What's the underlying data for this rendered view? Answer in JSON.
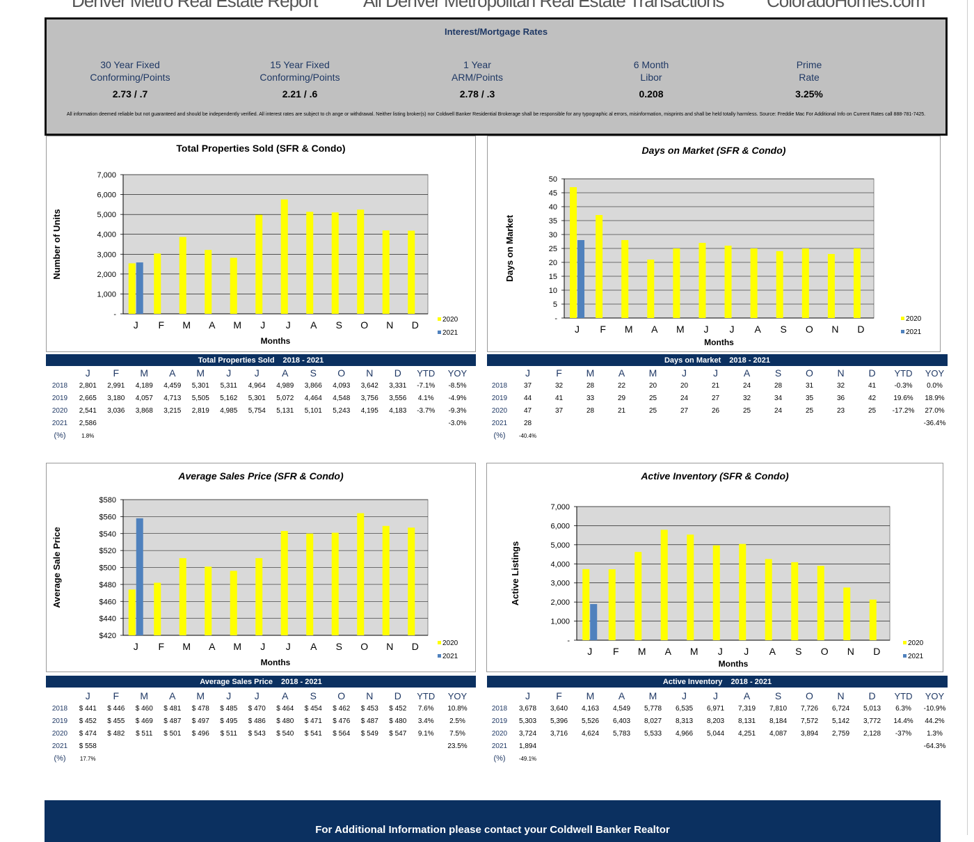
{
  "header": {
    "left": "Denver Metro Real Estate Report",
    "center": "All Denver Metropolitan Real Estate Transactions",
    "right": "ColoradoHomes.com"
  },
  "rates": {
    "title": "Interest/Mortgage Rates",
    "items": [
      {
        "line1": "30 Year Fixed",
        "line2": "Conforming/Points",
        "value": "2.73 /  .7"
      },
      {
        "line1": "15 Year Fixed",
        "line2": "Conforming/Points",
        "value": "2.21  /  .6"
      },
      {
        "line1": "1 Year",
        "line2": "ARM/Points",
        "value": "2.78 / .3"
      },
      {
        "line1": "6 Month",
        "line2": "Libor",
        "value": "0.208"
      },
      {
        "line1": "Prime",
        "line2": "Rate",
        "value": "3.25%"
      }
    ],
    "disclaimer": "All information deemed reliable but not guaranteed and should be independently verified. All interest rates are subject to ch ange or withdrawal. Neither listing broker(s) nor Coldwell Banker Residential Brokerage shall be responsible for any typographic al errors,  misinformation, misprints and shall be held totally harmless. Source: Freddie Mac For Additional Info on Current Rates call 888-781-7425."
  },
  "colors": {
    "series_2020": "#ffff00",
    "series_2021": "#4f81bd",
    "navy": "#0b3060",
    "plot_bg": "#d9d9d9",
    "rates_bg": "#c0c0c0"
  },
  "months": [
    "J",
    "F",
    "M",
    "A",
    "M",
    "J",
    "J",
    "A",
    "S",
    "O",
    "N",
    "D"
  ],
  "chart_data": [
    {
      "type": "bar",
      "title": "Total Properties Sold (SFR & Condo)",
      "xlabel": "Months",
      "ylabel": "Number of Units",
      "ylim": [
        0,
        7000
      ],
      "yticks": [
        "-",
        "1,000",
        "2,000",
        "3,000",
        "4,000",
        "5,000",
        "6,000",
        "7,000"
      ],
      "categories": [
        "J",
        "F",
        "M",
        "A",
        "M",
        "J",
        "J",
        "A",
        "S",
        "O",
        "N",
        "D"
      ],
      "series": [
        {
          "name": "2020",
          "values": [
            2541,
            3036,
            3868,
            3215,
            2819,
            4985,
            5754,
            5131,
            5101,
            5243,
            4195,
            4183
          ]
        },
        {
          "name": "2021",
          "values": [
            2586,
            null,
            null,
            null,
            null,
            null,
            null,
            null,
            null,
            null,
            null,
            null
          ]
        }
      ],
      "legend": "right",
      "grid": true
    },
    {
      "type": "bar",
      "title": "Days on Market (SFR & Condo)",
      "xlabel": "Months",
      "ylabel": "Days on Market",
      "ylim": [
        0,
        50
      ],
      "yticks": [
        "-",
        "5",
        "10",
        "15",
        "20",
        "25",
        "30",
        "35",
        "40",
        "45",
        "50"
      ],
      "categories": [
        "J",
        "F",
        "M",
        "A",
        "M",
        "J",
        "J",
        "A",
        "S",
        "O",
        "N",
        "D"
      ],
      "series": [
        {
          "name": "2020",
          "values": [
            47,
            37,
            28,
            21,
            25,
            27,
            26,
            25,
            24,
            25,
            23,
            25
          ]
        },
        {
          "name": "2021",
          "values": [
            28,
            null,
            null,
            null,
            null,
            null,
            null,
            null,
            null,
            null,
            null,
            null
          ]
        }
      ],
      "legend": "right",
      "grid": true
    },
    {
      "type": "bar",
      "title": "Average Sales Price (SFR & Condo)",
      "xlabel": "Months",
      "ylabel": "Average Sale Price",
      "ylim": [
        420,
        580
      ],
      "yticks": [
        "$420",
        "$440",
        "$460",
        "$480",
        "$500",
        "$520",
        "$540",
        "$560",
        "$580"
      ],
      "categories": [
        "J",
        "F",
        "M",
        "A",
        "M",
        "J",
        "J",
        "A",
        "S",
        "O",
        "N",
        "D"
      ],
      "series": [
        {
          "name": "2020",
          "values": [
            474,
            482,
            511,
            501,
            496,
            511,
            543,
            540,
            541,
            564,
            549,
            547
          ]
        },
        {
          "name": "2021",
          "values": [
            558,
            null,
            null,
            null,
            null,
            null,
            null,
            null,
            null,
            null,
            null,
            null
          ]
        }
      ],
      "legend": "right",
      "grid": true
    },
    {
      "type": "bar",
      "title": "Active Inventory (SFR & Condo)",
      "xlabel": "Months",
      "ylabel": "Active Listings",
      "ylim": [
        0,
        7000
      ],
      "yticks": [
        "-",
        "1,000",
        "2,000",
        "3,000",
        "4,000",
        "5,000",
        "6,000",
        "7,000"
      ],
      "categories": [
        "J",
        "F",
        "M",
        "A",
        "M",
        "J",
        "J",
        "A",
        "S",
        "O",
        "N",
        "D"
      ],
      "series": [
        {
          "name": "2020",
          "values": [
            3724,
            3716,
            4624,
            5783,
            5533,
            4966,
            5044,
            4251,
            4087,
            3894,
            2759,
            2128
          ]
        },
        {
          "name": "2021",
          "values": [
            1894,
            null,
            null,
            null,
            null,
            null,
            null,
            null,
            null,
            null,
            null,
            null
          ]
        }
      ],
      "legend": "right",
      "grid": true
    }
  ],
  "tables": [
    {
      "title": "Total Properties Sold",
      "range": "2018 - 2021",
      "headers": [
        "J",
        "F",
        "M",
        "A",
        "M",
        "J",
        "J",
        "A",
        "S",
        "O",
        "N",
        "D",
        "YTD",
        "YOY"
      ],
      "rows": [
        {
          "year": "2018",
          "cells": [
            "2,801",
            "2,991",
            "4,189",
            "4,459",
            "5,301",
            "5,311",
            "4,964",
            "4,989",
            "3,866",
            "4,093",
            "3,642",
            "3,331",
            "-7.1%",
            "-8.5%"
          ]
        },
        {
          "year": "2019",
          "cells": [
            "2,665",
            "3,180",
            "4,057",
            "4,713",
            "5,505",
            "5,162",
            "5,301",
            "5,072",
            "4,464",
            "4,548",
            "3,756",
            "3,556",
            "4.1%",
            "-4.9%"
          ]
        },
        {
          "year": "2020",
          "cells": [
            "2,541",
            "3,036",
            "3,868",
            "3,215",
            "2,819",
            "4,985",
            "5,754",
            "5,131",
            "5,101",
            "5,243",
            "4,195",
            "4,183",
            "-3.7%",
            "-9.3%"
          ]
        },
        {
          "year": "2021",
          "cells": [
            "2,586",
            "",
            "",
            "",
            "",
            "",
            "",
            "",
            "",
            "",
            "",
            "",
            "",
            "-3.0%"
          ]
        },
        {
          "year": "(%)",
          "cells": [
            "1.8%",
            "",
            "",
            "",
            "",
            "",
            "",
            "",
            "",
            "",
            "",
            "",
            "",
            ""
          ]
        }
      ]
    },
    {
      "title": "Days on Market",
      "range": "2018 - 2021",
      "headers": [
        "J",
        "F",
        "M",
        "A",
        "M",
        "J",
        "J",
        "A",
        "S",
        "O",
        "N",
        "D",
        "YTD",
        "YOY"
      ],
      "rows": [
        {
          "year": "2018",
          "cells": [
            "37",
            "32",
            "28",
            "22",
            "20",
            "20",
            "21",
            "24",
            "28",
            "31",
            "32",
            "41",
            "-0.3%",
            "0.0%"
          ]
        },
        {
          "year": "2019",
          "cells": [
            "44",
            "41",
            "33",
            "29",
            "25",
            "24",
            "27",
            "32",
            "34",
            "35",
            "36",
            "42",
            "19.6%",
            "18.9%"
          ]
        },
        {
          "year": "2020",
          "cells": [
            "47",
            "37",
            "28",
            "21",
            "25",
            "27",
            "26",
            "25",
            "24",
            "25",
            "23",
            "25",
            "-17.2%",
            "27.0%"
          ]
        },
        {
          "year": "2021",
          "cells": [
            "28",
            "",
            "",
            "",
            "",
            "",
            "",
            "",
            "",
            "",
            "",
            "",
            "",
            "-36.4%"
          ]
        },
        {
          "year": "(%)",
          "cells": [
            "-40.4%",
            "",
            "",
            "",
            "",
            "",
            "",
            "",
            "",
            "",
            "",
            "",
            "",
            ""
          ]
        }
      ]
    },
    {
      "title": "Average Sales Price",
      "range": "2018 - 2021",
      "headers": [
        "J",
        "F",
        "M",
        "A",
        "M",
        "J",
        "J",
        "A",
        "S",
        "O",
        "N",
        "D",
        "YTD",
        "YOY"
      ],
      "rows": [
        {
          "year": "2018",
          "cells": [
            "$ 441",
            "$ 446",
            "$ 460",
            "$ 481",
            "$ 478",
            "$ 485",
            "$ 470",
            "$ 464",
            "$ 454",
            "$ 462",
            "$ 453",
            "$ 452",
            "7.6%",
            "10.8%"
          ]
        },
        {
          "year": "2019",
          "cells": [
            "$ 452",
            "$ 455",
            "$ 469",
            "$ 487",
            "$ 497",
            "$ 495",
            "$ 486",
            "$ 480",
            "$ 471",
            "$ 476",
            "$ 487",
            "$ 480",
            "3.4%",
            "2.5%"
          ]
        },
        {
          "year": "2020",
          "cells": [
            "$ 474",
            "$ 482",
            "$ 511",
            "$ 501",
            "$ 496",
            "$ 511",
            "$ 543",
            "$ 540",
            "$ 541",
            "$ 564",
            "$ 549",
            "$ 547",
            "9.1%",
            "7.5%"
          ]
        },
        {
          "year": "2021",
          "cells": [
            "$ 558",
            "",
            "",
            "",
            "",
            "",
            "",
            "",
            "",
            "",
            "",
            "",
            "",
            "23.5%"
          ]
        },
        {
          "year": "(%)",
          "cells": [
            "17.7%",
            "",
            "",
            "",
            "",
            "",
            "",
            "",
            "",
            "",
            "",
            "",
            "",
            ""
          ]
        }
      ]
    },
    {
      "title": "Active Inventory",
      "range": "2018 - 2021",
      "headers": [
        "J",
        "F",
        "M",
        "A",
        "M",
        "J",
        "J",
        "A",
        "S",
        "O",
        "N",
        "D",
        "YTD",
        "YOY"
      ],
      "rows": [
        {
          "year": "2018",
          "cells": [
            "3,678",
            "3,640",
            "4,163",
            "4,549",
            "5,778",
            "6,535",
            "6,971",
            "7,319",
            "7,810",
            "7,726",
            "6,724",
            "5,013",
            "6.3%",
            "-10.9%"
          ]
        },
        {
          "year": "2019",
          "cells": [
            "5,303",
            "5,396",
            "5,526",
            "6,403",
            "8,027",
            "8,313",
            "8,203",
            "8,131",
            "8,184",
            "7,572",
            "5,142",
            "3,772",
            "14.4%",
            "44.2%"
          ]
        },
        {
          "year": "2020",
          "cells": [
            "3,724",
            "3,716",
            "4,624",
            "5,783",
            "5,533",
            "4,966",
            "5,044",
            "4,251",
            "4,087",
            "3,894",
            "2,759",
            "2,128",
            "-37%",
            "1.3%"
          ]
        },
        {
          "year": "2021",
          "cells": [
            "1,894",
            "",
            "",
            "",
            "",
            "",
            "",
            "",
            "",
            "",
            "",
            "",
            "",
            "-64.3%"
          ]
        },
        {
          "year": "(%)",
          "cells": [
            "-49.1%",
            "",
            "",
            "",
            "",
            "",
            "",
            "",
            "",
            "",
            "",
            "",
            "",
            ""
          ]
        }
      ]
    }
  ],
  "footer": {
    "text": "For Additional Information please contact your Coldwell Banker Realtor"
  }
}
